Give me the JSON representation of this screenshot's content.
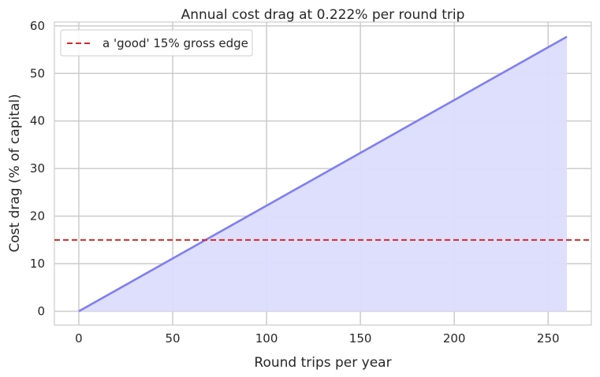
{
  "chart_data": {
    "type": "area",
    "title": "Annual cost drag at 0.222% per round trip",
    "xlabel": "Round trips per year",
    "ylabel": "Cost drag (% of capital)",
    "xlim": [
      -13,
      273
    ],
    "ylim": [
      -2.9,
      60.8
    ],
    "xticks": [
      0,
      50,
      100,
      150,
      200,
      250
    ],
    "yticks": [
      0,
      10,
      20,
      30,
      40,
      50,
      60
    ],
    "grid": true,
    "series": [
      {
        "x": [
          0,
          260
        ],
        "y": [
          0,
          57.72
        ],
        "color": "#7f7ff0",
        "fill_color": "#dcdcfd"
      }
    ],
    "reference_lines": [
      {
        "name": "a 'good' 15% gross edge",
        "y": 15,
        "style": "dashed",
        "color": "#d62728"
      }
    ],
    "legend_position": "top-left"
  }
}
